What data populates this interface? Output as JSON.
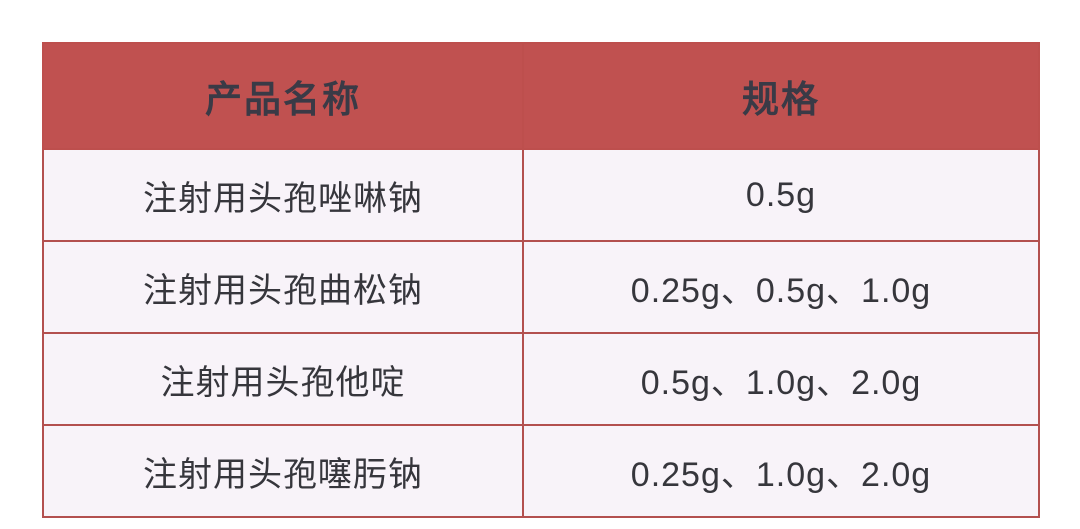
{
  "table": {
    "columns": [
      {
        "label": "产品名称"
      },
      {
        "label": "规格"
      }
    ],
    "rows": [
      {
        "product": "注射用头孢唑啉钠",
        "spec": "0.5g"
      },
      {
        "product": "注射用头孢曲松钠",
        "spec": "0.25g、0.5g、1.0g"
      },
      {
        "product": "注射用头孢他啶",
        "spec": "0.5g、1.0g、2.0g"
      },
      {
        "product": "注射用头孢噻肟钠",
        "spec": "0.25g、1.0g、2.0g"
      }
    ],
    "colors": {
      "header_bg": "#c05150",
      "border": "#b3504f",
      "cell_bg": "#f8f3f9",
      "header_text": "#3a3a46",
      "body_text": "#36363c",
      "page_bg": "#ffffff"
    }
  },
  "chart_data": {
    "type": "table",
    "title": "",
    "columns": [
      "产品名称",
      "规格"
    ],
    "rows": [
      [
        "注射用头孢唑啉钠",
        "0.5g"
      ],
      [
        "注射用头孢曲松钠",
        "0.25g、0.5g、1.0g"
      ],
      [
        "注射用头孢他啶",
        "0.5g、1.0g、2.0g"
      ],
      [
        "注射用头孢噻肟钠",
        "0.25g、1.0g、2.0g"
      ]
    ]
  }
}
